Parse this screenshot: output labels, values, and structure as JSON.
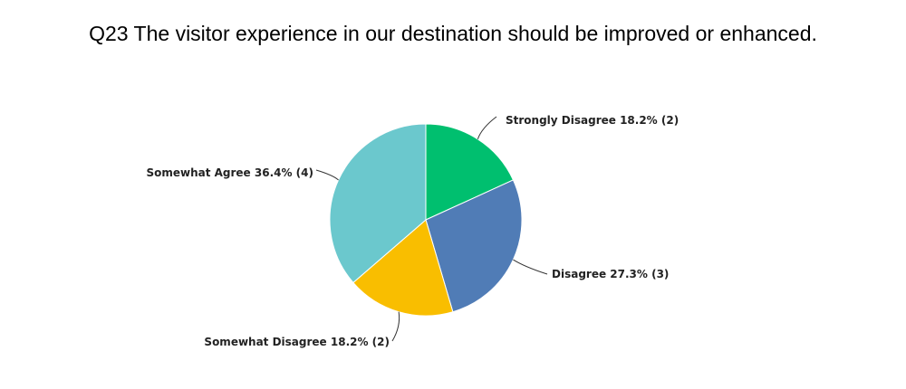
{
  "chart_data": {
    "type": "pie",
    "title": "Q23 The visitor experience in our destination should be improved or enhanced.",
    "slices": [
      {
        "label": "Strongly Disagree 18.2% (2)",
        "value": 2,
        "percent": 18.2,
        "color": "#00bf6f"
      },
      {
        "label": "Disagree 27.3% (3)",
        "value": 3,
        "percent": 27.3,
        "color": "#507cb6"
      },
      {
        "label": "Somewhat Disagree 18.2% (2)",
        "value": 2,
        "percent": 18.2,
        "color": "#f9be00"
      },
      {
        "label": "Somewhat Agree 36.4% (4)",
        "value": 4,
        "percent": 36.4,
        "color": "#6bc8cd"
      }
    ]
  }
}
